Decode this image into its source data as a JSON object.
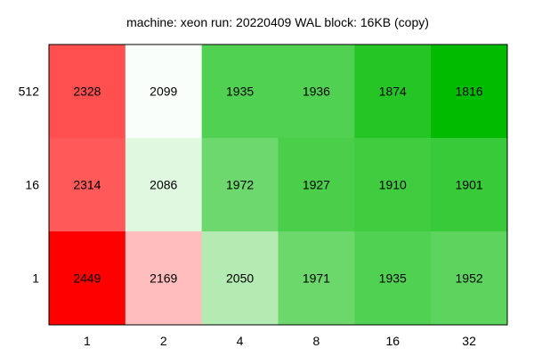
{
  "chart_data": {
    "type": "heatmap",
    "title": "machine: xeon run: 20220409 WAL block: 16KB (copy)",
    "xlabel": "",
    "ylabel": "",
    "x_categories": [
      "1",
      "2",
      "4",
      "8",
      "16",
      "32"
    ],
    "y_categories": [
      "512",
      "16",
      "1"
    ],
    "values": [
      [
        2328,
        2099,
        1935,
        1936,
        1874,
        1816
      ],
      [
        2314,
        2086,
        1972,
        1927,
        1910,
        1901
      ],
      [
        2449,
        2169,
        2050,
        1971,
        1935,
        1952
      ]
    ],
    "colors": {
      "high": "#ff0000",
      "low": "#00bb00",
      "neutral": "#ffffff"
    }
  }
}
